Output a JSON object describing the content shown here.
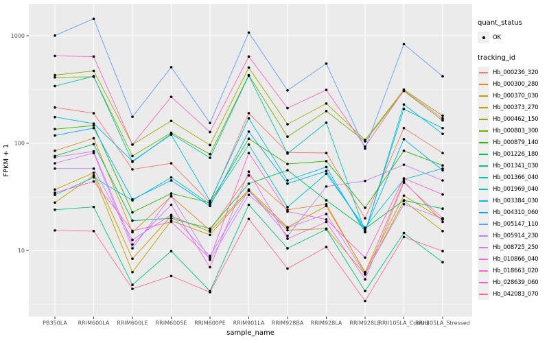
{
  "chart_data": {
    "type": "line",
    "title": "",
    "xlabel": "sample_name",
    "ylabel": "FPKM + 1",
    "y_scale": "log10",
    "y_ticks": [
      10,
      100,
      1000
    ],
    "y_minor_ticks": [
      3.162,
      31.62,
      316.2
    ],
    "ylim_log": [
      0.68,
      3.3
    ],
    "grid": true,
    "grid_color": "#FFFFFF",
    "panel_background": "#EBEBEB",
    "point_color": "#000000",
    "tick_label_color": "#4D4D4D",
    "legend_position": "right",
    "legend_quant_title": "quant_status",
    "legend_quant_ok": "OK",
    "legend_tracking_title": "tracking_id",
    "categories": [
      "PB350LA",
      "RRIM600LA",
      "RRIM600LE",
      "RRIM600SE",
      "RRIM600PE",
      "RRIM901LA",
      "RRIM928BA",
      "RRIM928LA",
      "RRIM928LE",
      "RRII105LA_Control",
      "RRII105LA_Stressed"
    ],
    "series": [
      {
        "name": "Hb_000236_320",
        "color": "#F8766D",
        "values": [
          215,
          190,
          57,
          65,
          28,
          190,
          82,
          81,
          20,
          138,
          81
        ]
      },
      {
        "name": "Hb_000300_280",
        "color": "#E88526",
        "values": [
          85,
          111,
          14.8,
          32,
          15.5,
          50,
          24,
          27,
          6.2,
          44,
          18.5
        ]
      },
      {
        "name": "Hb_000370_030",
        "color": "#D39200",
        "values": [
          37,
          53,
          8.4,
          21,
          15,
          37,
          16.5,
          26,
          6.3,
          32.5,
          19.5
        ]
      },
      {
        "name": "Hb_000373_270",
        "color": "#BC9D00",
        "values": [
          28,
          50,
          6.3,
          19,
          14,
          36,
          15.5,
          16,
          6,
          29,
          15.2
        ]
      },
      {
        "name": "Hb_000462_150",
        "color": "#9DA702",
        "values": [
          430,
          470,
          97,
          161,
          96,
          505,
          150,
          234,
          107,
          315,
          180
        ]
      },
      {
        "name": "Hb_000803_300",
        "color": "#6FB000",
        "values": [
          410,
          415,
          76,
          125,
          79,
          430,
          115,
          199,
          104,
          306,
          163
        ]
      },
      {
        "name": "Hb_000879_140",
        "color": "#2CB600",
        "values": [
          135,
          146,
          22.7,
          34,
          28,
          110,
          64,
          68,
          25,
          85,
          62
        ]
      },
      {
        "name": "Hb_001226_180",
        "color": "#00BC51",
        "values": [
          76,
          98,
          19,
          20,
          16,
          42,
          56,
          29.4,
          16,
          29.4,
          24.6
        ]
      },
      {
        "name": "Hb_001341_030",
        "color": "#00C087",
        "values": [
          24,
          25.5,
          4.8,
          9.9,
          4.2,
          26.7,
          10.5,
          15.8,
          4.2,
          14.6,
          7.8
        ]
      },
      {
        "name": "Hb_001366_040",
        "color": "#00C0B2",
        "values": [
          340,
          420,
          67,
          122,
          73,
          425,
          80,
          155,
          15,
          208,
          138
        ]
      },
      {
        "name": "Hb_001969_040",
        "color": "#00BFC4",
        "values": [
          33,
          48,
          29.4,
          48,
          27,
          97,
          25.4,
          52,
          16.3,
          46,
          58
        ]
      },
      {
        "name": "Hb_003384_030",
        "color": "#00B8E7",
        "values": [
          175,
          152,
          68,
          120,
          29,
          170,
          45,
          60,
          14.8,
          229,
          122
        ]
      },
      {
        "name": "Hb_004310_060",
        "color": "#00ACFC",
        "values": [
          118,
          138,
          30,
          45,
          26,
          128,
          42,
          55,
          15.5,
          109,
          56
        ]
      },
      {
        "name": "Hb_005147_110",
        "color": "#619CFF",
        "values": [
          1005,
          1440,
          176,
          510,
          154,
          1070,
          310,
          550,
          89,
          835,
          420
        ]
      },
      {
        "name": "Hb_005914_230",
        "color": "#B983FF",
        "values": [
          58,
          58,
          12.6,
          21.5,
          8.9,
          36.7,
          13.7,
          39.5,
          44.5,
          63,
          45
        ]
      },
      {
        "name": "Hb_008725_250",
        "color": "#CB7EFF",
        "values": [
          65,
          81,
          10.5,
          32.4,
          8.2,
          33,
          16.3,
          21.9,
          6.1,
          27,
          19.8
        ]
      },
      {
        "name": "Hb_010866_040",
        "color": "#E76BF3",
        "values": [
          74,
          84,
          11.4,
          26.7,
          7,
          54.3,
          12.9,
          18.5,
          5.4,
          43,
          20
        ]
      },
      {
        "name": "Hb_018663_020",
        "color": "#FD61D1",
        "values": [
          34.5,
          44,
          15.3,
          18.5,
          8.5,
          81,
          23.1,
          19.5,
          8.6,
          47,
          33.3
        ]
      },
      {
        "name": "Hb_028639_060",
        "color": "#FF62BC",
        "values": [
          650,
          640,
          97,
          270,
          127,
          640,
          212,
          313,
          93,
          310,
          170
        ]
      },
      {
        "name": "Hb_042083_070",
        "color": "#FF6C91",
        "values": [
          15.4,
          15.2,
          4.4,
          5.8,
          4.1,
          19.7,
          6.8,
          10.8,
          3.4,
          13.4,
          9.9
        ]
      }
    ]
  }
}
